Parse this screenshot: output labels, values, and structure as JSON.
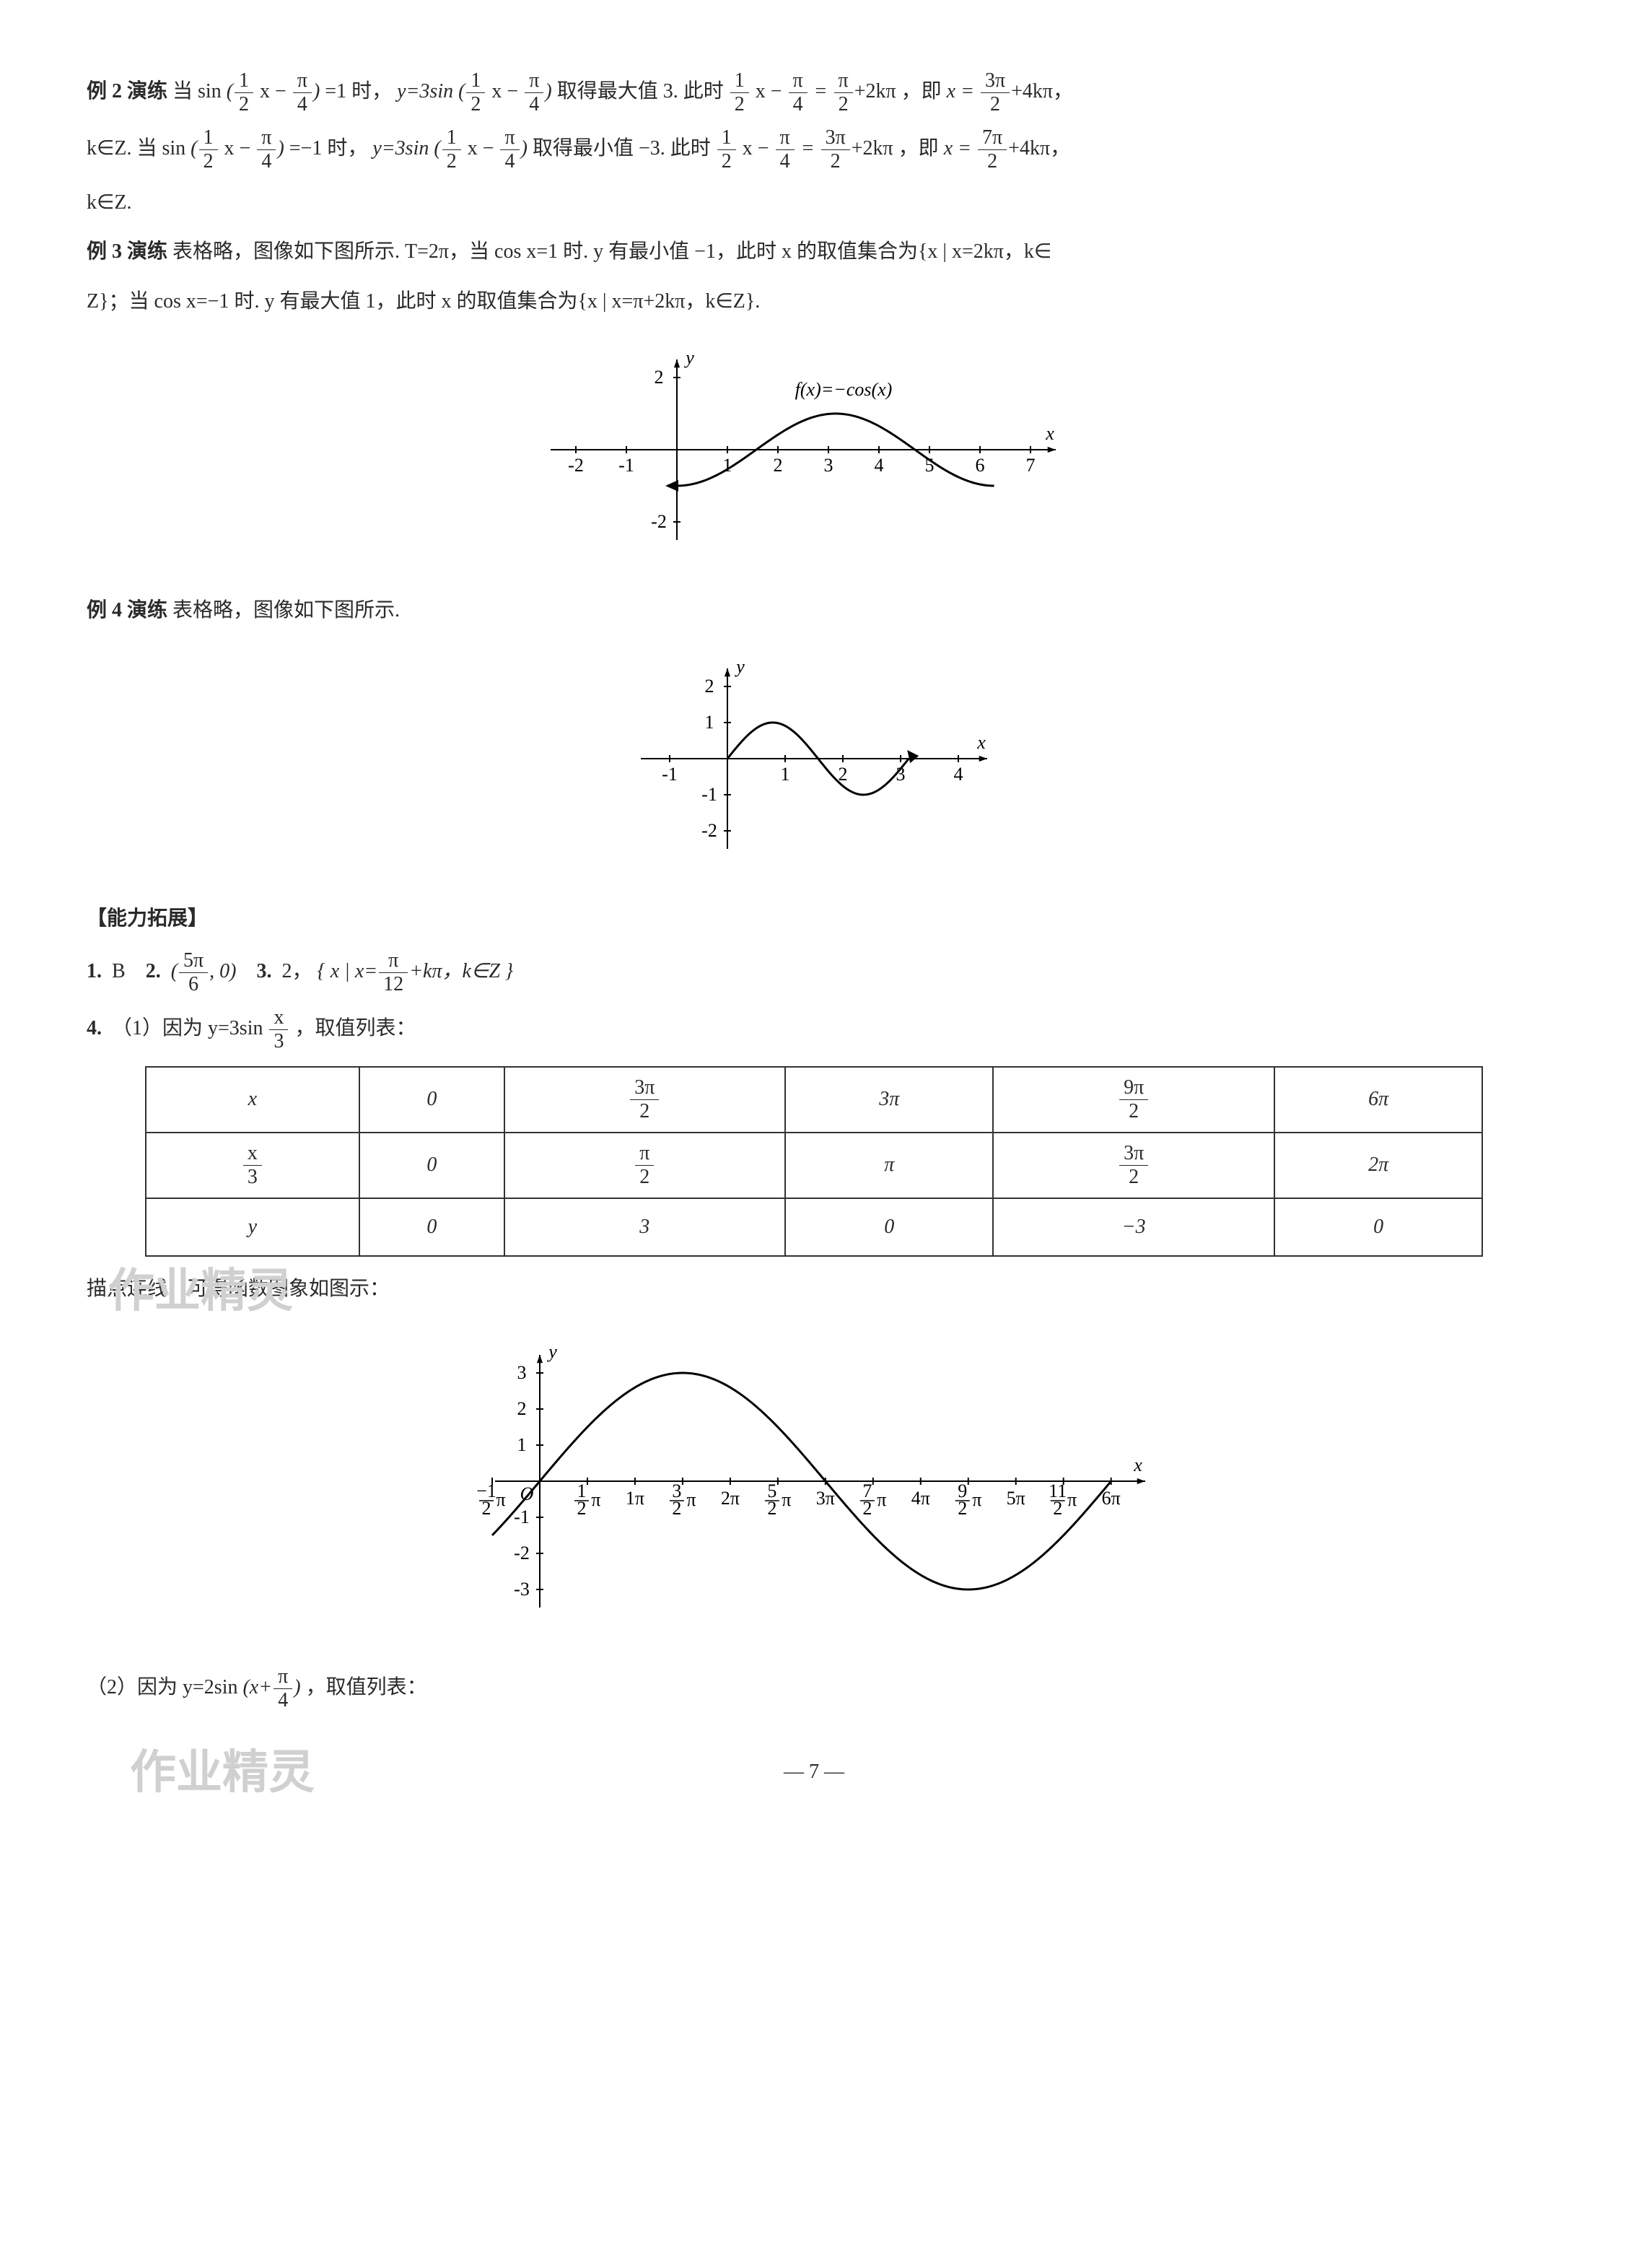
{
  "ex2": {
    "label": "例 2 演练",
    "line1_a": "当 sin",
    "line1_b": "=1 时，",
    "line1_c": "取得最大值 3. 此时",
    "line1_d": "，即",
    "line1_e": "，",
    "line2_a": "k∈Z. 当 sin",
    "line2_b": "=−1 时，",
    "line2_c": "取得最小值 −3. 此时",
    "line2_d": "，即",
    "line2_e": "，",
    "line3": "k∈Z.",
    "arg_half": "1",
    "arg_half_den": "2",
    "arg_pi4_num": "π",
    "arg_pi4_den": "4",
    "y_eq": "y=3sin",
    "rhs1_halfx_minus_pi4_eq_pi2_plus_2kpi": "+2kπ",
    "pi2_num": "π",
    "pi2_den": "2",
    "x_eq": "x =",
    "3pi2_num": "3π",
    "3pi2_den": "2",
    "plus4kpi": "+4kπ",
    "7pi2_num": "7π",
    "7pi2_den": "2"
  },
  "ex3": {
    "label": "例 3 演练",
    "text1": "表格略，图像如下图所示. T=2π，当 cos x=1 时. y 有最小值 −1，此时 x 的取值集合为{x | x=2kπ，k∈",
    "text2": "Z}；当 cos x=−1 时. y 有最大值 1，此时 x 的取值集合为{x | x=π+2kπ，k∈Z}.",
    "graph": {
      "type": "line",
      "func_label": "f(x)=−cos(x)",
      "xlim": [
        -2.5,
        7.5
      ],
      "ylim": [
        -2.5,
        2.5
      ],
      "xticks": [
        -2,
        -1,
        1,
        2,
        3,
        4,
        5,
        6,
        7
      ],
      "yticks": [
        -2,
        2
      ],
      "axis_labels": {
        "x": "x",
        "y": "y"
      },
      "curve_color": "#000000",
      "background": "#ffffff",
      "line_width": 3,
      "domain": [
        0,
        6.28
      ],
      "arrow_left_at_y": -1
    }
  },
  "ex4": {
    "label": "例 4 演练",
    "text": "表格略，图像如下图所示.",
    "graph": {
      "type": "line",
      "xlim": [
        -1.5,
        4.5
      ],
      "ylim": [
        -2.5,
        2.5
      ],
      "xticks": [
        -1,
        1,
        2,
        3,
        4
      ],
      "yticks": [
        -2,
        -1,
        1,
        2
      ],
      "axis_labels": {
        "x": "x",
        "y": "y"
      },
      "curve_color": "#000000",
      "line_width": 3,
      "domain": [
        0,
        3.14
      ]
    }
  },
  "ability_head": "【能力拓展】",
  "ability_line": {
    "q1": "1.",
    "a1": "B",
    "q2": "2.",
    "a2_open": "(",
    "a2_num": "5π",
    "a2_den": "6",
    "a2_close": ", 0)",
    "q3": "3.",
    "a3_pre": "2，",
    "a3_set_open": "{ x  |  x=",
    "a3_num": "π",
    "a3_den": "12",
    "a3_post": "+kπ，k∈Z }"
  },
  "q4": {
    "label": "4.",
    "p1a": "（1）因为 y=3sin ",
    "p1_num": "x",
    "p1_den": "3",
    "p1b": "，取值列表：",
    "table": {
      "columns": [
        "x",
        "x/3",
        "y"
      ],
      "rows": [
        [
          "x",
          "0",
          "3π/2",
          "3π",
          "9π/2",
          "6π"
        ],
        [
          "x/3",
          "0",
          "π/2",
          "π",
          "3π/2",
          "2π"
        ],
        [
          "y",
          "0",
          "3",
          "0",
          "−3",
          "0"
        ]
      ],
      "row0": {
        "h": "x",
        "c": [
          "0",
          {
            "num": "3π",
            "den": "2"
          },
          "3π",
          {
            "num": "9π",
            "den": "2"
          },
          "6π"
        ]
      },
      "row1": {
        "h": {
          "num": "x",
          "den": "3"
        },
        "c": [
          "0",
          {
            "num": "π",
            "den": "2"
          },
          "π",
          {
            "num": "3π",
            "den": "2"
          },
          "2π"
        ]
      },
      "row2": {
        "h": "y",
        "c": [
          "0",
          "3",
          "0",
          "−3",
          "0"
        ]
      }
    },
    "caption": "描点连线，可得函数图象如图示：",
    "graph": {
      "type": "line",
      "xlim": [
        -1,
        19.5
      ],
      "ylim": [
        -3.5,
        3.5
      ],
      "yticks": [
        -3,
        -2,
        -1,
        1,
        2,
        3
      ],
      "xticklabels": [
        "−(1/2)π",
        "1/2 π",
        "1π",
        "3/2 π",
        "2π",
        "5/2 π",
        "3π",
        "7/2 π",
        "4π",
        "9/2 π",
        "5π",
        "11/2 π",
        "6π"
      ],
      "axis_labels": {
        "x": "x",
        "y": "y"
      },
      "origin_label": "O",
      "curve_color": "#000000",
      "line_width": 3,
      "amplitude": 3,
      "period": 18.85,
      "domain": [
        -1.57,
        18.85
      ]
    },
    "p2a": "（2）因为 y=2sin",
    "p2_arg_open": "(x+",
    "p2_num": "π",
    "p2_den": "4",
    "p2_arg_close": ")",
    "p2b": "，取值列表："
  },
  "page_num": "— 7 —",
  "watermark": "作业精灵"
}
